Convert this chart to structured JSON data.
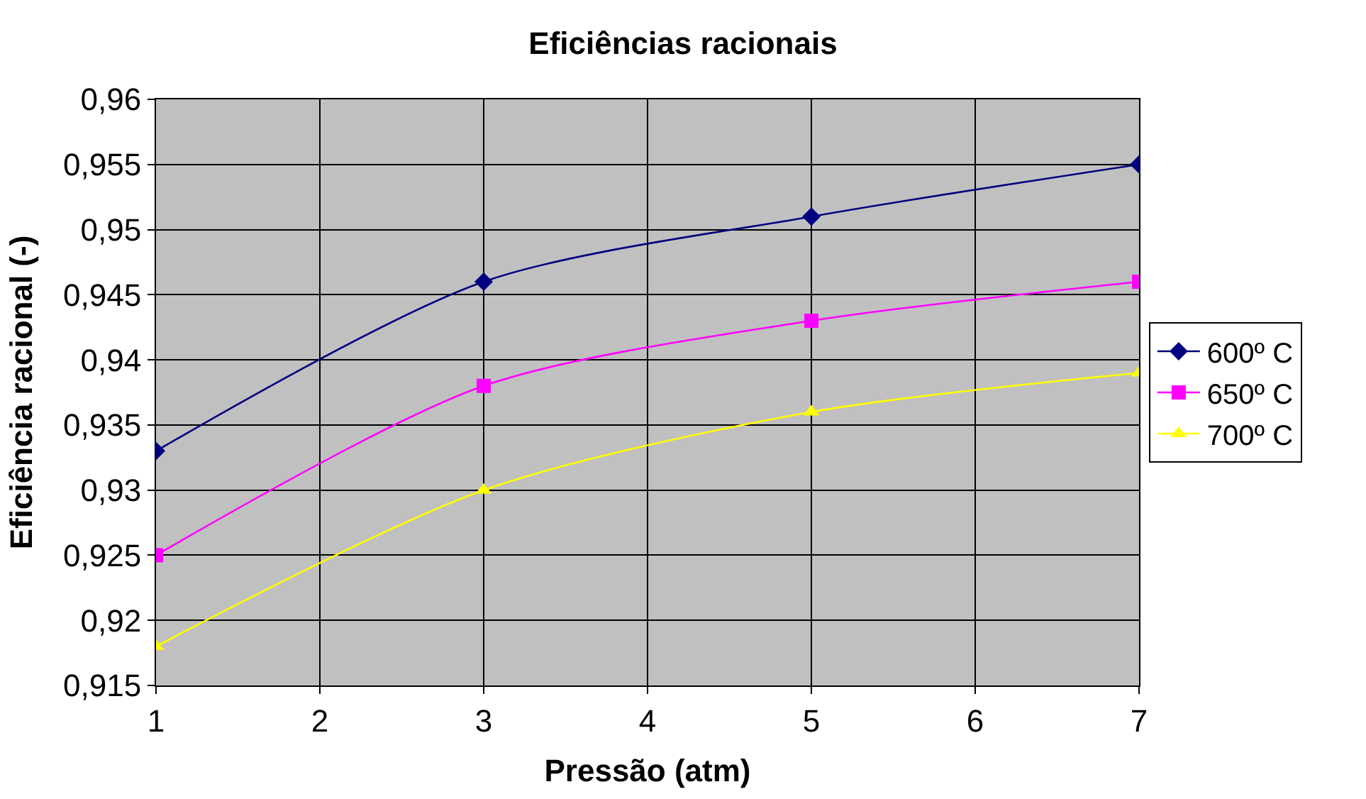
{
  "chart_data": {
    "type": "line",
    "title": "Eficiências racionais",
    "xlabel": "Pressão (atm)",
    "ylabel": "Eficiência racional (-)",
    "x": [
      1,
      3,
      5,
      7
    ],
    "series": [
      {
        "name": "600º C",
        "color": "#000080",
        "marker": "diamond",
        "values": [
          0.933,
          0.946,
          0.951,
          0.955
        ]
      },
      {
        "name": "650º C",
        "color": "#ff00ff",
        "marker": "square",
        "values": [
          0.925,
          0.938,
          0.943,
          0.946
        ]
      },
      {
        "name": "700º C",
        "color": "#ffff00",
        "marker": "triangle",
        "values": [
          0.918,
          0.93,
          0.936,
          0.939
        ]
      }
    ],
    "xlim": [
      1,
      7
    ],
    "xticks": [
      1,
      2,
      3,
      4,
      5,
      6,
      7
    ],
    "ylim": [
      0.915,
      0.96
    ],
    "yticks": [
      {
        "value": 0.915,
        "label": "0,915"
      },
      {
        "value": 0.92,
        "label": "0,92"
      },
      {
        "value": 0.925,
        "label": "0,925"
      },
      {
        "value": 0.93,
        "label": "0,93"
      },
      {
        "value": 0.935,
        "label": "0,935"
      },
      {
        "value": 0.94,
        "label": "0,94"
      },
      {
        "value": 0.945,
        "label": "0,945"
      },
      {
        "value": 0.95,
        "label": "0,95"
      },
      {
        "value": 0.955,
        "label": "0,955"
      },
      {
        "value": 0.96,
        "label": "0,96"
      }
    ],
    "grid": true,
    "legend": "right",
    "line_style": "solid"
  }
}
